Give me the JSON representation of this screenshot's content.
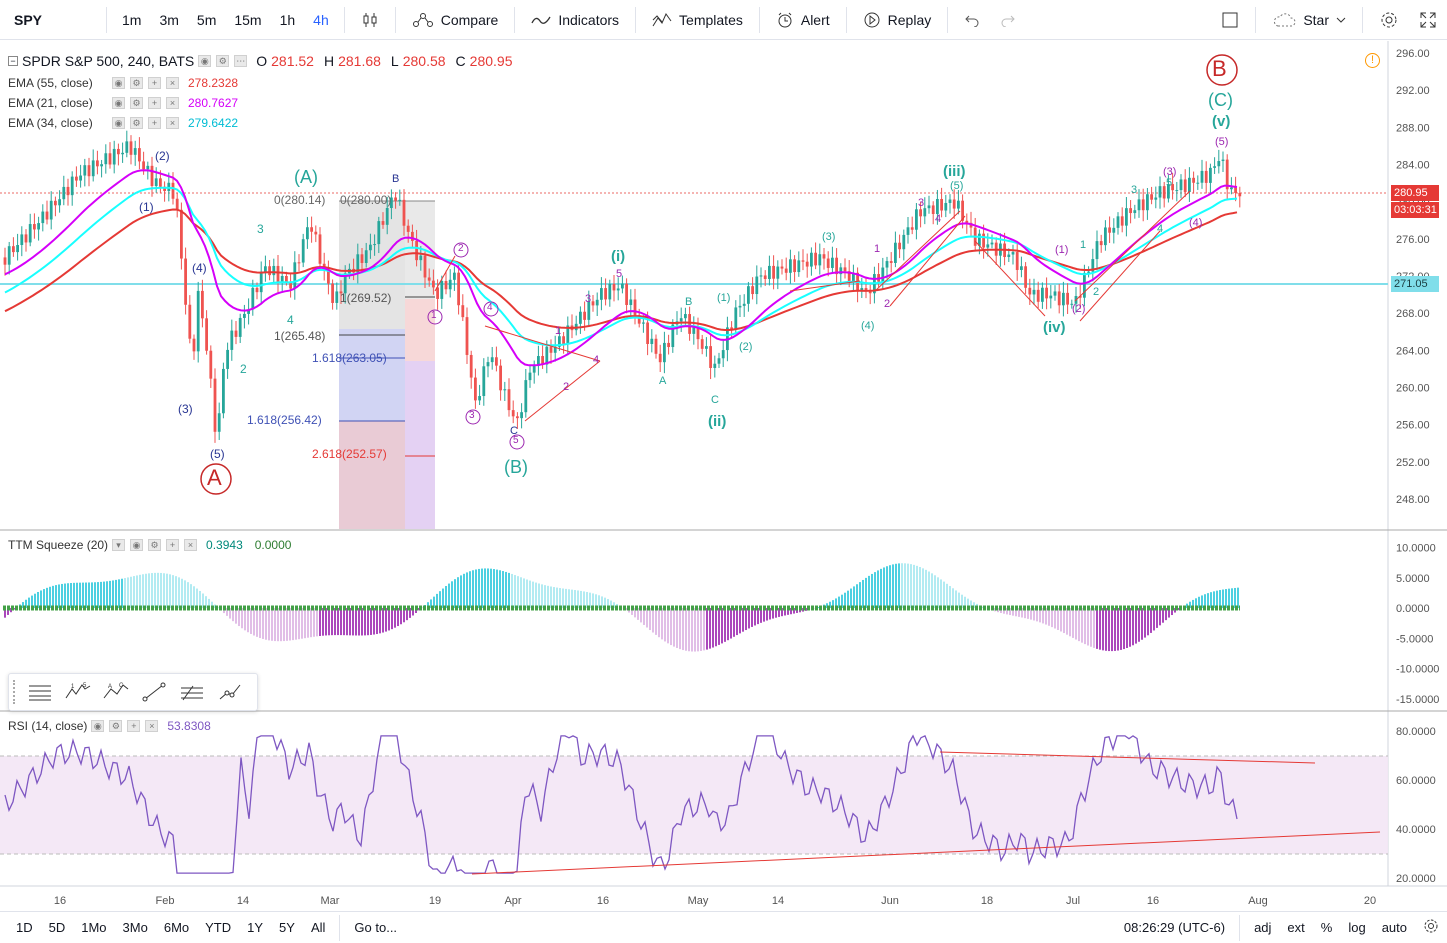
{
  "toolbar": {
    "symbol": "SPY",
    "intervals": [
      "1m",
      "3m",
      "5m",
      "15m",
      "1h",
      "4h"
    ],
    "active_interval": "4h",
    "compare_label": "Compare",
    "indicators_label": "Indicators",
    "templates_label": "Templates",
    "alert_label": "Alert",
    "replay_label": "Replay",
    "star_label": "Star"
  },
  "main_legend": {
    "title": "SPDR S&P 500, 240, BATS",
    "o_label": "O",
    "o_value": "281.52",
    "h_label": "H",
    "h_value": "281.68",
    "l_label": "L",
    "l_value": "280.58",
    "c_label": "C",
    "c_value": "280.95"
  },
  "emas": [
    {
      "label": "EMA (55, close)",
      "value": "278.2328",
      "color": "#e53935"
    },
    {
      "label": "EMA (21, close)",
      "value": "280.7627",
      "color": "#d500f9"
    },
    {
      "label": "EMA (34, close)",
      "value": "279.6422",
      "color": "#00e5ff"
    }
  ],
  "price_axis": [
    "296.00",
    "292.00",
    "288.00",
    "284.00",
    "280.00",
    "276.00",
    "272.00",
    "268.00",
    "264.00",
    "260.00",
    "256.00",
    "252.00",
    "248.00"
  ],
  "price_tags": {
    "last": "280.95",
    "countdown": "03:03:31",
    "level": "271.05"
  },
  "squeeze": {
    "label": "TTM Squeeze (20)",
    "v1": "0.3943",
    "v2": "0.0000",
    "axis": [
      "10.0000",
      "5.0000",
      "0.0000",
      "-5.0000",
      "-10.0000",
      "-15.0000"
    ]
  },
  "rsi": {
    "label": "RSI (14, close)",
    "value": "53.8308",
    "axis": [
      "80.0000",
      "60.0000",
      "40.0000",
      "20.0000"
    ]
  },
  "time_axis": [
    "16",
    "Feb",
    "14",
    "Mar",
    "19",
    "Apr",
    "16",
    "May",
    "14",
    "Jun",
    "18",
    "Jul",
    "16",
    "Aug",
    "20"
  ],
  "fib": {
    "zero_left": "0(280.14)",
    "zero_right": "0(280.00)",
    "one_left": "1(265.48)",
    "one_right": "1(269.52)",
    "f1618_a": "1.618(263.05)",
    "f1618_b": "1.618(256.42)",
    "f2618": "2.618(252.57)"
  },
  "wave_labels": {
    "A_big": "A",
    "B_big": "B",
    "A_paren": "(A)",
    "B_paren": "(B)",
    "C_paren": "(C)",
    "i": "(i)",
    "ii": "(ii)",
    "iii": "(iii)",
    "iv": "(iv)",
    "v": "(v)",
    "n1": "(1)",
    "n2": "(2)",
    "n3": "(3)",
    "n4": "(4)",
    "n5": "(5)",
    "d1": "1",
    "d2": "2",
    "d3": "3",
    "d4": "4",
    "d5": "5",
    "la": "A",
    "lb": "B",
    "lc": "C"
  },
  "bottombar": {
    "ranges": [
      "1D",
      "5D",
      "1Mo",
      "3Mo",
      "6Mo",
      "YTD",
      "1Y",
      "5Y",
      "All"
    ],
    "goto": "Go to...",
    "time": "08:26:29 (UTC-6)",
    "adj": "adj",
    "ext": "ext",
    "pct": "%",
    "log": "log",
    "auto": "auto"
  }
}
